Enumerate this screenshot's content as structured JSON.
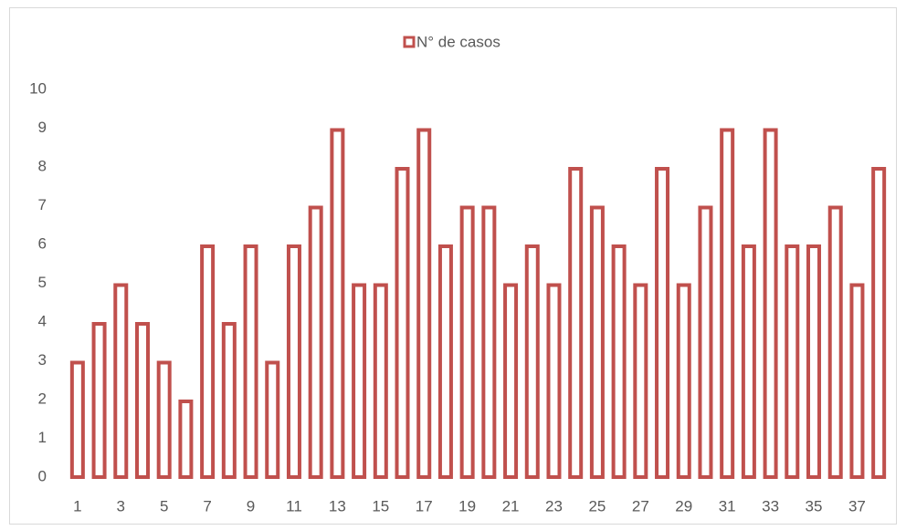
{
  "chart_data": {
    "type": "bar",
    "categories": [
      "1",
      null,
      "3",
      null,
      "5",
      null,
      "7",
      null,
      "9",
      null,
      "11",
      null,
      "13",
      null,
      "15",
      null,
      "17",
      null,
      "19",
      null,
      "21",
      null,
      "23",
      null,
      "25",
      null,
      "27",
      null,
      "29",
      null,
      "31",
      null,
      "33",
      null,
      "35",
      null,
      "37",
      null
    ],
    "series": [
      {
        "name": "N° de casos",
        "color": "#c0504d",
        "values": [
          3,
          4,
          5,
          4,
          3,
          2,
          6,
          4,
          6,
          3,
          6,
          7,
          9,
          5,
          5,
          8,
          9,
          6,
          7,
          7,
          5,
          6,
          5,
          8,
          7,
          6,
          5,
          8,
          5,
          7,
          9,
          6,
          9,
          6,
          6,
          7,
          5,
          8
        ]
      }
    ],
    "ylim": [
      0,
      10
    ],
    "yticks": [
      0,
      1,
      2,
      3,
      4,
      5,
      6,
      7,
      8,
      9,
      10
    ],
    "grid": false,
    "legend": "top"
  }
}
